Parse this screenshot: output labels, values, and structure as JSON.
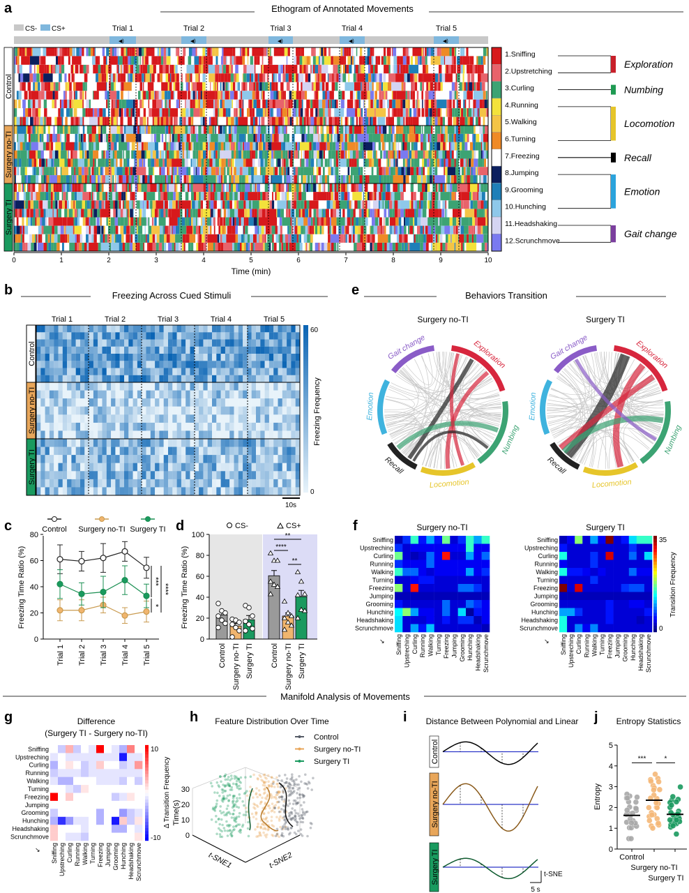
{
  "panel_letters": {
    "a": "a",
    "b": "b",
    "c": "c",
    "d": "d",
    "e": "e",
    "f": "f",
    "g": "g",
    "h": "h",
    "i": "i",
    "j": "j"
  },
  "a": {
    "title": "Ethogram of Annotated Movements",
    "cs_minus": "CS-",
    "cs_plus": "CS+",
    "trials": [
      "Trial 1",
      "Trial 2",
      "Trial 3",
      "Trial 4",
      "Trial 5"
    ],
    "groups": [
      "Control",
      "Surgery no-TI",
      "Surgery TI"
    ],
    "x_ticks": [
      "0",
      "1",
      "2",
      "3",
      "4",
      "5",
      "6",
      "7",
      "8",
      "9",
      "10"
    ],
    "xlabel": "Time (min)",
    "behaviors": [
      {
        "label": "1.Sniffing",
        "color": "#d7191c"
      },
      {
        "label": "2.Upstretching",
        "color": "#e8636b"
      },
      {
        "label": "3.Curling",
        "color": "#3ca373"
      },
      {
        "label": "4.Running",
        "color": "#f3e23b"
      },
      {
        "label": "5.Walking",
        "color": "#f4c445"
      },
      {
        "label": "6.Turning",
        "color": "#ef8a26"
      },
      {
        "label": "7.Freezing",
        "color": "#ffffff"
      },
      {
        "label": "8.Jumping",
        "color": "#0b1f5e"
      },
      {
        "label": "9.Grooming",
        "color": "#1f7fb8"
      },
      {
        "label": "10.Hunching",
        "color": "#8ec8ea"
      },
      {
        "label": "11.Headshaking",
        "color": "#d4d4f2"
      },
      {
        "label": "12.Scrunchmove",
        "color": "#7a7af0"
      }
    ],
    "categories": [
      {
        "label": "Exploration",
        "color": "#c8202a"
      },
      {
        "label": "Numbing",
        "color": "#1e9a52"
      },
      {
        "label": "Locomotion",
        "color": "#e6c52a"
      },
      {
        "label": "Recall",
        "color": "#000000"
      },
      {
        "label": "Emotion",
        "color": "#2ba3dc"
      },
      {
        "label": "Gait change",
        "color": "#7b3f9e"
      }
    ]
  },
  "b": {
    "title": "Freezing Across Cued Stimuli",
    "trials": [
      "Trial 1",
      "Trial 2",
      "Trial 3",
      "Trial 4",
      "Trial 5"
    ],
    "groups": [
      "Control",
      "Surgery no-TI",
      "Surgery TI"
    ],
    "colorbar_max": "60",
    "colorbar_min": "0",
    "colorbar_label": "Freezing Frequency",
    "scale_bar": "10s"
  },
  "e": {
    "title": "Behaviors Transition",
    "diagrams": [
      "Surgery no-TI",
      "Surgery TI"
    ],
    "sectors": [
      {
        "label": "Exploration",
        "color": "#d7263d"
      },
      {
        "label": "Numbing",
        "color": "#3ca373"
      },
      {
        "label": "Locomotion",
        "color": "#e6c52a"
      },
      {
        "label": "Recall",
        "color": "#222222"
      },
      {
        "label": "Emotion",
        "color": "#3fb3de"
      },
      {
        "label": "Gait change",
        "color": "#8a5cc7"
      }
    ]
  },
  "manifold_title": "Manifold Analysis of Movements",
  "h": {
    "title": "Feature Distribution Over Time",
    "legend": [
      {
        "label": "Control",
        "color": "#555b66"
      },
      {
        "label": "Surgery no-TI",
        "color": "#e8a65a"
      },
      {
        "label": "Surgery TI",
        "color": "#1a9a5f"
      }
    ],
    "zlabel": "Time(s)",
    "z_ticks": [
      "0",
      "10",
      "20",
      "30"
    ],
    "xlabel": "t-SNE1",
    "ylabel": "t-SNE2"
  },
  "i": {
    "title": "Distance Between Polynomial and Linear",
    "groups": [
      "Control",
      "Surgery no-TI",
      "Surgery TI"
    ],
    "scale_y": "t-SNE",
    "scale_x": "5 s"
  },
  "chart_data": [
    {
      "panel": "c",
      "type": "line",
      "categories": [
        "Trial 1",
        "Trial 2",
        "Trial 3",
        "Trial 4",
        "Trial 5"
      ],
      "ylabel": "Freezing Time Ratio (%)",
      "xlabel": "",
      "ylim": [
        0,
        80
      ],
      "y_ticks": [
        "0",
        "20",
        "40",
        "60",
        "80"
      ],
      "legend_position": "top",
      "series": [
        {
          "name": "Control",
          "color": "#222222",
          "values": [
            61,
            59.5,
            62,
            67,
            54.5
          ],
          "error": [
            11,
            7.5,
            11,
            7.5,
            8
          ]
        },
        {
          "name": "Surgery no-TI",
          "color": "#c99a4e",
          "values": [
            22,
            22,
            26,
            18,
            21
          ],
          "error": [
            8,
            8,
            6,
            6,
            8
          ]
        },
        {
          "name": "Surgery TI",
          "color": "#1a8f52",
          "values": [
            42,
            34.5,
            36,
            45,
            33
          ],
          "error": [
            11,
            8.5,
            12,
            11,
            9
          ]
        }
      ],
      "significance": [
        "***",
        "****",
        "*"
      ]
    },
    {
      "panel": "d",
      "type": "bar",
      "ylabel": "Freezing Time Ratio (%)",
      "ylim": [
        0,
        100
      ],
      "y_ticks": [
        "0",
        "20",
        "40",
        "60",
        "80",
        "100"
      ],
      "conditions": [
        "CS-",
        "CS+"
      ],
      "categories": [
        "Control",
        "Surgery no-TI",
        "Surgery TI",
        "Control",
        "Surgery no-TI",
        "Surgery TI"
      ],
      "values": [
        23,
        12.5,
        18.5,
        60.5,
        22,
        40.5
      ],
      "error": [
        3,
        2.5,
        4,
        5,
        3,
        6
      ],
      "colors": [
        "#9a9a9a",
        "#f0b56e",
        "#1a9a5f",
        "#9a9a9a",
        "#f0b56e",
        "#1a9a5f"
      ],
      "points": [
        [
          34,
          27,
          25,
          22,
          18,
          15,
          11
        ],
        [
          19,
          18,
          16,
          14,
          11,
          8,
          2
        ],
        [
          32,
          30,
          22,
          17,
          14,
          10,
          8
        ],
        [
          82,
          75,
          75,
          55,
          52,
          50,
          43
        ],
        [
          36,
          25,
          22,
          20,
          16,
          13,
          9
        ],
        [
          64,
          55,
          43,
          42,
          28,
          27,
          20
        ]
      ],
      "significance": [
        "**",
        "****",
        "**"
      ]
    },
    {
      "panel": "f",
      "type": "heatmap",
      "titles": [
        "Surgery no-TI",
        "Surgery TI"
      ],
      "row_labels": [
        "Sniffing",
        "Upstreching",
        "Curling",
        "Running",
        "Walking",
        "Turning",
        "Freezing",
        "Jumping",
        "Grooming",
        "Hunching",
        "Headshaking",
        "Scrunchmove"
      ],
      "col_labels": [
        "Sniffing",
        "Upstreching",
        "Curling",
        "Running",
        "Walking",
        "Turning",
        "Freezing",
        "Jumping",
        "Grooming",
        "Hunching",
        "Headshaking",
        "Scrunchmove"
      ],
      "colorbar_label": "Transition Frequency",
      "range": [
        0,
        35
      ],
      "colorbar_ticks": [
        "0",
        "35"
      ],
      "matrices": [
        [
          [
            2,
            6,
            15,
            5,
            10,
            5,
            17,
            3,
            6,
            15,
            10,
            15
          ],
          [
            6,
            3,
            4,
            4,
            4,
            4,
            4,
            4,
            4,
            15,
            4,
            4
          ],
          [
            17,
            3,
            2,
            3,
            8,
            4,
            30,
            3,
            3,
            10,
            4,
            8
          ],
          [
            6,
            4,
            4,
            4,
            8,
            4,
            4,
            4,
            4,
            4,
            4,
            4
          ],
          [
            15,
            8,
            8,
            4,
            3,
            4,
            4,
            4,
            4,
            10,
            4,
            6
          ],
          [
            3,
            3,
            4,
            5,
            5,
            3,
            3,
            3,
            3,
            3,
            3,
            3
          ],
          [
            18,
            3,
            30,
            3,
            3,
            3,
            3,
            3,
            8,
            8,
            6,
            3
          ],
          [
            2,
            2,
            2,
            2,
            2,
            2,
            2,
            2,
            2,
            2,
            2,
            2
          ],
          [
            5,
            3,
            3,
            3,
            3,
            3,
            8,
            3,
            3,
            8,
            6,
            4
          ],
          [
            13,
            18,
            10,
            4,
            4,
            3,
            8,
            3,
            12,
            1,
            5,
            4
          ],
          [
            12,
            3,
            3,
            3,
            4,
            3,
            5,
            3,
            6,
            6,
            2,
            4
          ],
          [
            12,
            3,
            10,
            5,
            11,
            3,
            3,
            3,
            3,
            3,
            3,
            2
          ]
        ],
        [
          [
            2,
            4,
            18,
            3,
            10,
            4,
            35,
            3,
            5,
            12,
            15,
            15
          ],
          [
            5,
            3,
            3,
            3,
            3,
            3,
            3,
            3,
            3,
            6,
            3,
            3
          ],
          [
            14,
            3,
            3,
            3,
            6,
            3,
            32,
            3,
            3,
            8,
            3,
            12
          ],
          [
            4,
            3,
            3,
            3,
            6,
            3,
            3,
            3,
            3,
            3,
            3,
            3
          ],
          [
            14,
            5,
            5,
            4,
            3,
            4,
            3,
            3,
            3,
            8,
            4,
            4
          ],
          [
            3,
            3,
            3,
            3,
            6,
            3,
            3,
            3,
            3,
            3,
            3,
            3
          ],
          [
            35,
            3,
            32,
            3,
            3,
            3,
            3,
            3,
            6,
            7,
            7,
            3
          ],
          [
            2,
            2,
            2,
            2,
            2,
            2,
            2,
            2,
            2,
            2,
            2,
            2
          ],
          [
            3,
            3,
            3,
            3,
            3,
            3,
            5,
            3,
            3,
            4,
            4,
            3
          ],
          [
            10,
            10,
            6,
            3,
            3,
            3,
            5,
            3,
            3,
            3,
            3,
            5
          ],
          [
            14,
            3,
            3,
            3,
            3,
            3,
            5,
            3,
            3,
            3,
            2,
            3
          ],
          [
            14,
            3,
            9,
            4,
            9,
            3,
            3,
            3,
            3,
            3,
            3,
            3
          ]
        ]
      ]
    },
    {
      "panel": "g",
      "type": "heatmap",
      "title": "Difference",
      "subtitle": "(Surgery TI - Surgery no-TI)",
      "colorbar_label": "Δ Transition Frequency",
      "range": [
        -10,
        10
      ],
      "colorbar_ticks": [
        "10",
        "-10"
      ]
    },
    {
      "panel": "j",
      "type": "scatter",
      "title": "Entropy Statistics",
      "ylabel": "Entropy",
      "ylim": [
        0,
        5
      ],
      "y_ticks": [
        "0",
        "1",
        "2",
        "3",
        "4",
        "5"
      ],
      "categories": [
        "Control",
        "Surgery no-TI",
        "Surgery TI"
      ],
      "colors": [
        "#a8a8a8",
        "#f5b877",
        "#1a9a5f"
      ],
      "medians": [
        1.62,
        2.35,
        1.67
      ],
      "significance": [
        "***",
        "*"
      ]
    }
  ]
}
